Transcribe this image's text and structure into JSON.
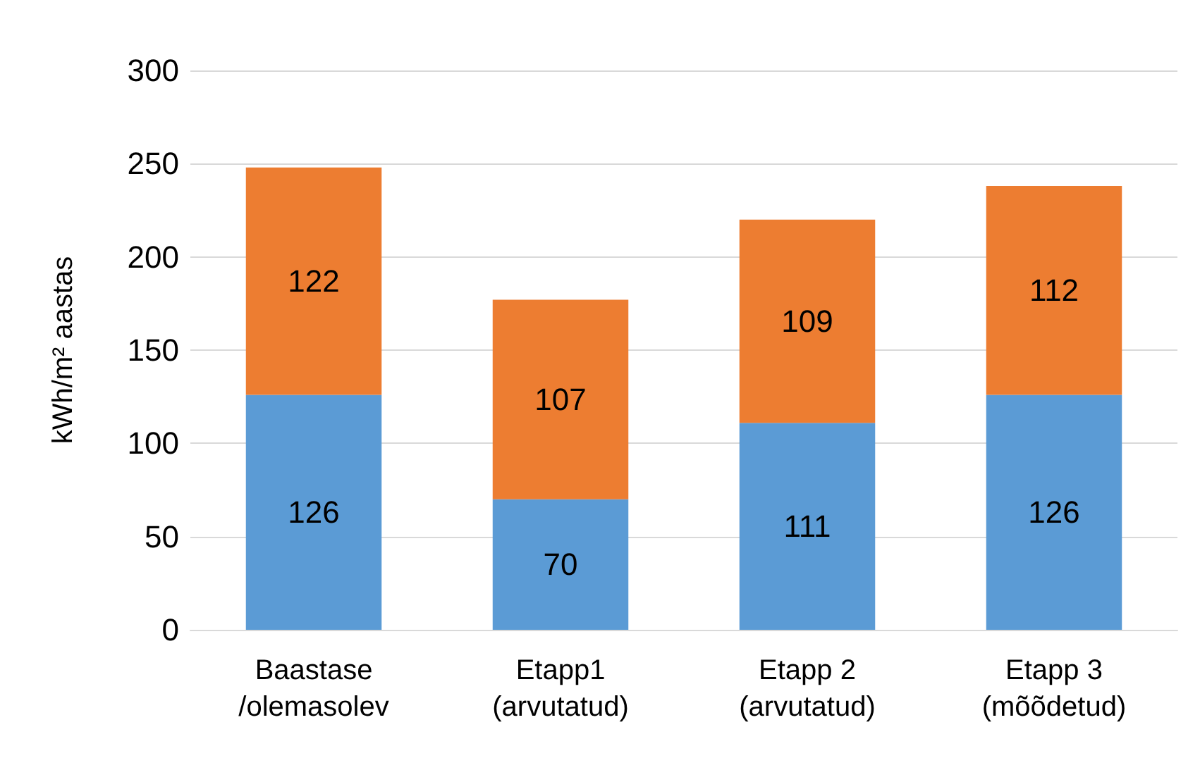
{
  "chart_data": {
    "type": "bar",
    "stacked": true,
    "ylabel": "kWh/m² aastas",
    "categories": [
      "Baastase\n/olemasolev",
      "Etapp1\n(arvutatud)",
      "Etapp 2\n(arvutatud)",
      "Etapp 3\n(mõõdetud)"
    ],
    "series": [
      {
        "color": "#5b9bd5",
        "values": [
          126,
          70,
          111,
          126
        ]
      },
      {
        "color": "#ed7d31",
        "values": [
          122,
          107,
          109,
          112
        ]
      }
    ],
    "ylim": [
      0,
      300
    ],
    "yticks": [
      0,
      50,
      100,
      150,
      200,
      250,
      300
    ],
    "grid": "y",
    "data_labels": true
  }
}
